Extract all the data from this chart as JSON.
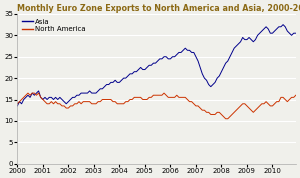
{
  "title": "Monthly Euro Zone Exports to North America and Asia, 2000-2010 (billion Euro)",
  "title_color": "#8B6914",
  "title_fontsize": 5.8,
  "title_fontweight": "bold",
  "ylim": [
    0,
    35
  ],
  "yticks": [
    0,
    5,
    10,
    15,
    20,
    25,
    30,
    35
  ],
  "background_color": "#f0f0eb",
  "grid_color": "#ffffff",
  "asia_color": "#00008B",
  "na_color": "#CC3300",
  "legend_asia": "Asia",
  "legend_na": "North America",
  "asia_data": [
    13.5,
    14.5,
    14.0,
    15.0,
    15.5,
    16.0,
    15.5,
    16.5,
    16.0,
    16.5,
    17.0,
    15.5,
    15.0,
    15.5,
    15.0,
    15.5,
    15.5,
    15.0,
    15.5,
    15.0,
    15.5,
    15.0,
    14.5,
    14.0,
    14.5,
    15.0,
    15.5,
    15.5,
    16.0,
    16.0,
    16.5,
    16.5,
    16.5,
    16.5,
    17.0,
    16.5,
    16.5,
    16.5,
    17.0,
    17.5,
    17.5,
    18.0,
    18.5,
    18.5,
    19.0,
    19.0,
    19.5,
    19.0,
    19.0,
    19.5,
    20.0,
    20.0,
    20.5,
    21.0,
    21.0,
    21.5,
    21.5,
    22.0,
    22.5,
    22.0,
    22.0,
    22.5,
    23.0,
    23.0,
    23.5,
    23.5,
    24.0,
    24.5,
    24.5,
    25.0,
    25.0,
    24.5,
    24.5,
    25.0,
    25.0,
    25.5,
    26.0,
    26.0,
    26.5,
    27.0,
    26.5,
    26.5,
    26.0,
    26.0,
    25.0,
    24.0,
    22.5,
    21.0,
    20.0,
    19.5,
    18.5,
    18.0,
    18.5,
    19.0,
    20.0,
    20.5,
    21.5,
    22.5,
    23.5,
    24.0,
    25.0,
    26.0,
    27.0,
    27.5,
    28.0,
    28.5,
    29.5,
    29.0,
    29.0,
    29.5,
    29.0,
    28.5,
    29.0,
    30.0,
    30.5,
    31.0,
    31.5,
    32.0,
    31.5,
    30.5,
    30.5,
    31.0,
    31.5,
    32.0,
    32.0,
    32.5,
    32.0,
    31.0,
    30.5,
    30.0,
    30.5,
    30.5
  ],
  "na_data": [
    14.0,
    14.5,
    15.0,
    15.5,
    16.0,
    16.5,
    16.0,
    16.5,
    16.5,
    16.0,
    16.5,
    15.5,
    15.0,
    14.5,
    14.0,
    14.0,
    14.5,
    14.0,
    14.5,
    14.0,
    14.0,
    13.5,
    13.5,
    13.0,
    13.0,
    13.5,
    13.5,
    14.0,
    14.0,
    14.5,
    14.0,
    14.5,
    14.5,
    14.5,
    14.5,
    14.0,
    14.0,
    14.0,
    14.5,
    14.5,
    15.0,
    15.0,
    15.0,
    15.0,
    15.0,
    14.5,
    14.5,
    14.0,
    14.0,
    14.0,
    14.0,
    14.5,
    14.5,
    15.0,
    15.0,
    15.5,
    15.5,
    15.5,
    15.5,
    15.0,
    15.0,
    15.0,
    15.5,
    15.5,
    16.0,
    16.0,
    16.0,
    16.0,
    16.0,
    16.5,
    16.0,
    15.5,
    15.5,
    15.5,
    15.5,
    16.0,
    15.5,
    15.5,
    15.5,
    15.5,
    15.0,
    14.5,
    14.5,
    14.0,
    13.5,
    13.5,
    13.0,
    12.5,
    12.5,
    12.0,
    12.0,
    11.5,
    11.5,
    11.5,
    12.0,
    12.0,
    11.5,
    11.0,
    10.5,
    10.5,
    11.0,
    11.5,
    12.0,
    12.5,
    13.0,
    13.5,
    14.0,
    14.0,
    13.5,
    13.0,
    12.5,
    12.0,
    12.5,
    13.0,
    13.5,
    14.0,
    14.0,
    14.5,
    14.0,
    13.5,
    13.5,
    14.0,
    14.5,
    14.5,
    15.5,
    15.5,
    15.0,
    14.5,
    15.0,
    15.5,
    15.5,
    16.0
  ]
}
